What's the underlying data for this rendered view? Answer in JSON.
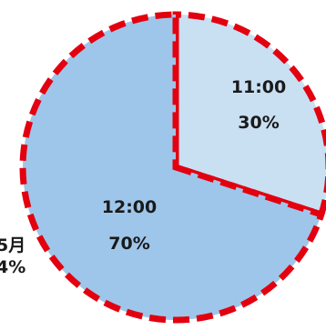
{
  "chart_data": {
    "type": "pie",
    "categories": [
      "11:00",
      "12:00"
    ],
    "values": [
      30,
      70
    ],
    "value_labels": [
      "30%",
      "70%"
    ],
    "slice_colors": [
      "#c9dff2",
      "#9ec6ea"
    ],
    "border_color": "#e3000f",
    "border_style": "dashed",
    "edge_labels": [
      "5月",
      "4%"
    ],
    "title": "",
    "legend": "none"
  }
}
